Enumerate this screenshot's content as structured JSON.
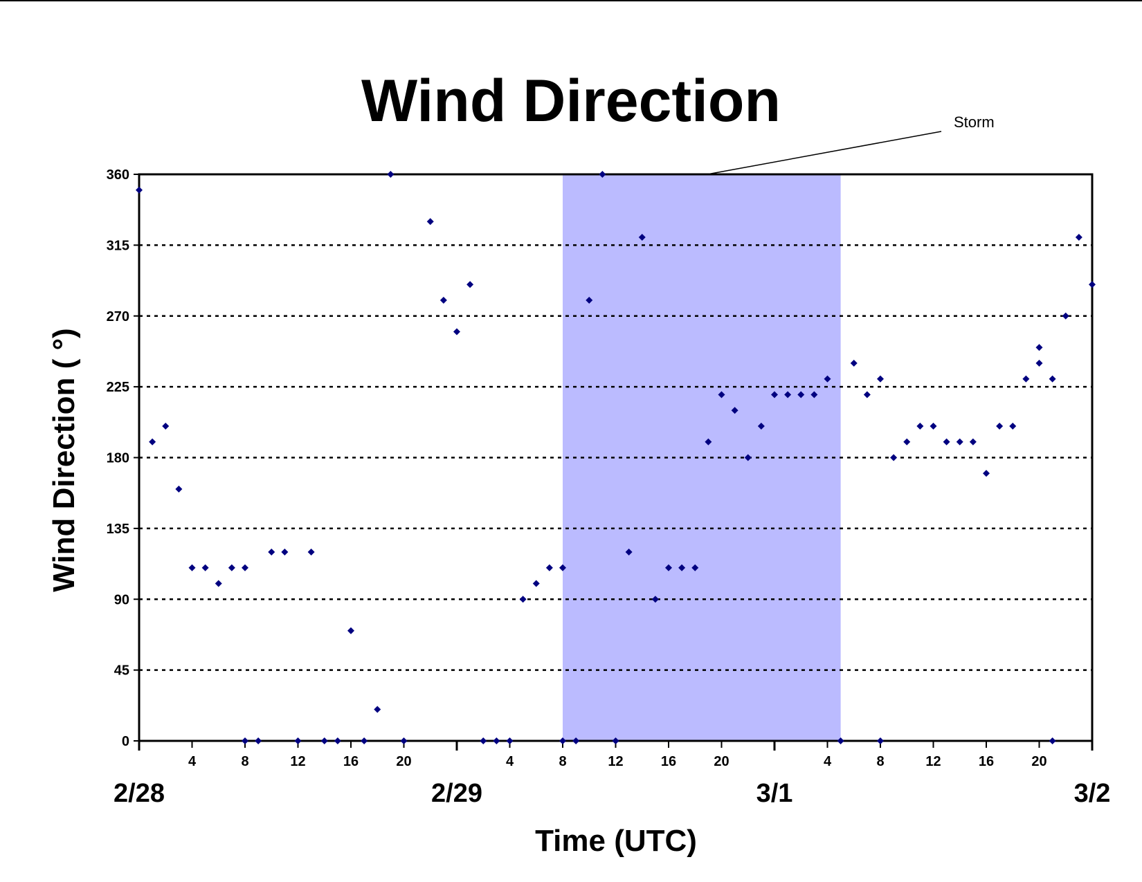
{
  "chart_data": {
    "type": "scatter",
    "title": "Wind Direction",
    "xlabel": "Time (UTC)",
    "ylabel": "Wind Direction ( °)",
    "ylim": [
      0,
      360
    ],
    "yticks": [
      0,
      45,
      90,
      135,
      180,
      225,
      270,
      315,
      360
    ],
    "xlim": [
      "2/28 00:00",
      "3/2 00:00"
    ],
    "hour_tick_labels": [
      "4",
      "8",
      "12",
      "16",
      "20",
      "4",
      "8",
      "12",
      "16",
      "20",
      "4",
      "8",
      "12",
      "16",
      "20"
    ],
    "date_labels": [
      "2/28",
      "2/29",
      "3/1",
      "3/2"
    ],
    "grid": "horizontal dotted",
    "marker_color": "#000080",
    "shaded_region": {
      "label": "Storm",
      "start": "2/29 08:00",
      "end": "3/1 05:00",
      "color": "#bbbbff"
    },
    "series": [
      {
        "points": [
          [
            "2/28 00:00",
            350
          ],
          [
            "2/28 01:00",
            190
          ],
          [
            "2/28 02:00",
            200
          ],
          [
            "2/28 03:00",
            160
          ],
          [
            "2/28 04:00",
            110
          ],
          [
            "2/28 05:00",
            110
          ],
          [
            "2/28 06:00",
            100
          ],
          [
            "2/28 07:00",
            110
          ],
          [
            "2/28 08:00",
            110
          ],
          [
            "2/28 08:00",
            0
          ],
          [
            "2/28 09:00",
            0
          ],
          [
            "2/28 10:00",
            120
          ],
          [
            "2/28 11:00",
            120
          ],
          [
            "2/28 12:00",
            0
          ],
          [
            "2/28 13:00",
            120
          ],
          [
            "2/28 14:00",
            0
          ],
          [
            "2/28 15:00",
            0
          ],
          [
            "2/28 16:00",
            70
          ],
          [
            "2/28 17:00",
            0
          ],
          [
            "2/28 18:00",
            20
          ],
          [
            "2/28 19:00",
            360
          ],
          [
            "2/28 20:00",
            0
          ],
          [
            "2/28 22:00",
            330
          ],
          [
            "2/28 23:00",
            280
          ],
          [
            "2/29 00:00",
            260
          ],
          [
            "2/29 01:00",
            290
          ],
          [
            "2/29 02:00",
            0
          ],
          [
            "2/29 03:00",
            0
          ],
          [
            "2/29 04:00",
            0
          ],
          [
            "2/29 05:00",
            90
          ],
          [
            "2/29 06:00",
            100
          ],
          [
            "2/29 07:00",
            110
          ],
          [
            "2/29 08:00",
            110
          ],
          [
            "2/29 08:00",
            0
          ],
          [
            "2/29 09:00",
            0
          ],
          [
            "2/29 10:00",
            280
          ],
          [
            "2/29 11:00",
            360
          ],
          [
            "2/29 12:00",
            0
          ],
          [
            "2/29 13:00",
            120
          ],
          [
            "2/29 14:00",
            320
          ],
          [
            "2/29 15:00",
            90
          ],
          [
            "2/29 16:00",
            110
          ],
          [
            "2/29 17:00",
            110
          ],
          [
            "2/29 18:00",
            110
          ],
          [
            "2/29 19:00",
            190
          ],
          [
            "2/29 20:00",
            220
          ],
          [
            "2/29 21:00",
            210
          ],
          [
            "2/29 22:00",
            180
          ],
          [
            "2/29 23:00",
            200
          ],
          [
            "3/1 00:00",
            220
          ],
          [
            "3/1 01:00",
            220
          ],
          [
            "3/1 02:00",
            220
          ],
          [
            "3/1 03:00",
            220
          ],
          [
            "3/1 04:00",
            230
          ],
          [
            "3/1 05:00",
            0
          ],
          [
            "3/1 06:00",
            240
          ],
          [
            "3/1 07:00",
            220
          ],
          [
            "3/1 08:00",
            230
          ],
          [
            "3/1 08:00",
            0
          ],
          [
            "3/1 09:00",
            180
          ],
          [
            "3/1 10:00",
            190
          ],
          [
            "3/1 11:00",
            200
          ],
          [
            "3/1 12:00",
            200
          ],
          [
            "3/1 13:00",
            190
          ],
          [
            "3/1 14:00",
            190
          ],
          [
            "3/1 15:00",
            190
          ],
          [
            "3/1 16:00",
            170
          ],
          [
            "3/1 17:00",
            200
          ],
          [
            "3/1 18:00",
            200
          ],
          [
            "3/1 19:00",
            230
          ],
          [
            "3/1 20:00",
            240
          ],
          [
            "3/1 20:00",
            250
          ],
          [
            "3/1 21:00",
            0
          ],
          [
            "3/1 21:00",
            230
          ],
          [
            "3/1 22:00",
            270
          ],
          [
            "3/1 23:00",
            320
          ],
          [
            "3/2 00:00",
            290
          ]
        ]
      }
    ]
  }
}
